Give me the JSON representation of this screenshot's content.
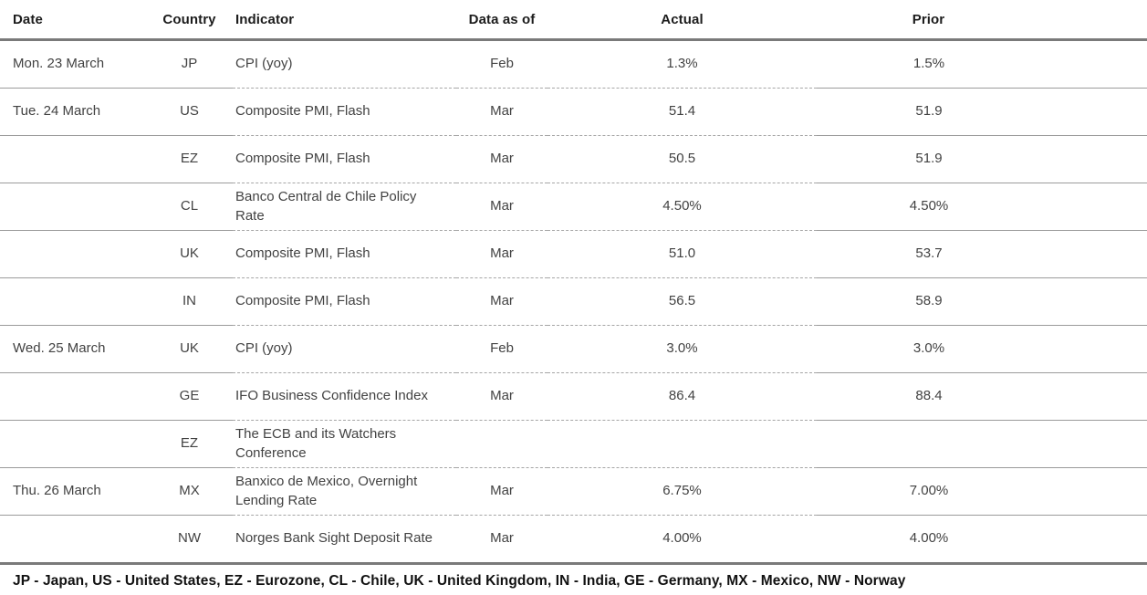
{
  "table": {
    "columns": [
      {
        "key": "date",
        "label": "Date"
      },
      {
        "key": "country",
        "label": "Country"
      },
      {
        "key": "indicator",
        "label": "Indicator"
      },
      {
        "key": "data_as_of",
        "label": "Data as of"
      },
      {
        "key": "actual",
        "label": "Actual"
      },
      {
        "key": "prior",
        "label": "Prior"
      }
    ],
    "rows": [
      {
        "date": "Mon. 23 March",
        "country": "JP",
        "indicator": "CPI (yoy)",
        "data_as_of": "Feb",
        "actual": "1.3%",
        "prior": "1.5%"
      },
      {
        "date": "Tue. 24 March",
        "country": "US",
        "indicator": "Composite PMI, Flash",
        "data_as_of": "Mar",
        "actual": "51.4",
        "prior": "51.9"
      },
      {
        "date": "",
        "country": "EZ",
        "indicator": "Composite PMI, Flash",
        "data_as_of": "Mar",
        "actual": "50.5",
        "prior": "51.9"
      },
      {
        "date": "",
        "country": "CL",
        "indicator": "Banco Central de Chile Policy Rate",
        "data_as_of": "Mar",
        "actual": "4.50%",
        "prior": "4.50%"
      },
      {
        "date": "",
        "country": "UK",
        "indicator": "Composite PMI, Flash",
        "data_as_of": "Mar",
        "actual": "51.0",
        "prior": "53.7"
      },
      {
        "date": "",
        "country": "IN",
        "indicator": "Composite PMI, Flash",
        "data_as_of": "Mar",
        "actual": "56.5",
        "prior": "58.9"
      },
      {
        "date": "Wed. 25 March",
        "country": "UK",
        "indicator": "CPI (yoy)",
        "data_as_of": "Feb",
        "actual": "3.0%",
        "prior": "3.0%"
      },
      {
        "date": "",
        "country": "GE",
        "indicator": "IFO Business Confidence Index",
        "data_as_of": "Mar",
        "actual": "86.4",
        "prior": "88.4"
      },
      {
        "date": "",
        "country": "EZ",
        "indicator": "The ECB and its Watchers Conference",
        "data_as_of": "",
        "actual": "",
        "prior": ""
      },
      {
        "date": "Thu. 26 March",
        "country": "MX",
        "indicator": "Banxico de Mexico, Overnight Lending Rate",
        "data_as_of": "Mar",
        "actual": "6.75%",
        "prior": "7.00%"
      },
      {
        "date": "",
        "country": "NW",
        "indicator": "Norges Bank Sight Deposit Rate",
        "data_as_of": "Mar",
        "actual": "4.00%",
        "prior": "4.00%"
      }
    ]
  },
  "footer": {
    "legend": "JP - Japan, US - United States, EZ - Eurozone, CL - Chile, UK - United Kingdom, IN - India, GE - Germany, MX - Mexico, NW - Norway"
  },
  "colors": {
    "rule_heavy": "#7a7a7a",
    "rule_light_solid": "#9b9b9b",
    "rule_light_dashed": "#a6a6a6",
    "text_header": "#1c1c1c",
    "text_body": "#424242",
    "text_footer": "#111111"
  }
}
